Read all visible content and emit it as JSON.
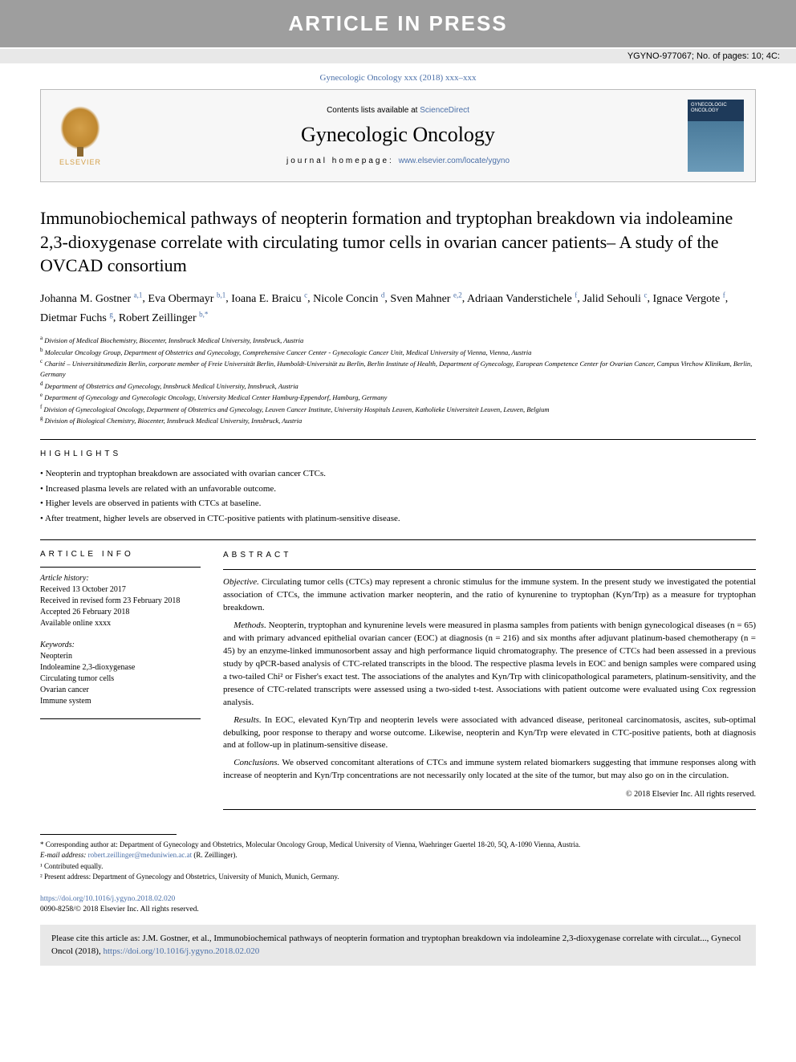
{
  "banner": "ARTICLE IN PRESS",
  "header_ref": "YGYNO-977067; No. of pages: 10; 4C:",
  "citation_line": "Gynecologic Oncology xxx (2018) xxx–xxx",
  "masthead": {
    "elsevier": "ELSEVIER",
    "contents_prefix": "Contents lists available at ",
    "contents_link": "ScienceDirect",
    "journal": "Gynecologic Oncology",
    "homepage_label": "journal homepage: ",
    "homepage_url": "www.elsevier.com/locate/ygyno",
    "cover_text": "GYNECOLOGIC ONCOLOGY"
  },
  "title": "Immunobiochemical pathways of neopterin formation and tryptophan breakdown via indoleamine 2,3-dioxygenase correlate with circulating tumor cells in ovarian cancer patients– A study of the OVCAD consortium",
  "authors": [
    {
      "name": "Johanna M. Gostner",
      "sup": "a,1"
    },
    {
      "name": "Eva Obermayr",
      "sup": "b,1"
    },
    {
      "name": "Ioana E. Braicu",
      "sup": "c"
    },
    {
      "name": "Nicole Concin",
      "sup": "d"
    },
    {
      "name": "Sven Mahner",
      "sup": "e,2"
    },
    {
      "name": "Adriaan Vanderstichele",
      "sup": "f"
    },
    {
      "name": "Jalid Sehouli",
      "sup": "c"
    },
    {
      "name": "Ignace Vergote",
      "sup": "f"
    },
    {
      "name": "Dietmar Fuchs",
      "sup": "g"
    },
    {
      "name": "Robert Zeillinger",
      "sup": "b,*"
    }
  ],
  "affiliations": [
    {
      "key": "a",
      "text": "Division of Medical Biochemistry, Biocenter, Innsbruck Medical University, Innsbruck, Austria"
    },
    {
      "key": "b",
      "text": "Molecular Oncology Group, Department of Obstetrics and Gynecology, Comprehensive Cancer Center - Gynecologic Cancer Unit, Medical University of Vienna, Vienna, Austria"
    },
    {
      "key": "c",
      "text": "Charité – Universitätsmedizin Berlin, corporate member of Freie Universität Berlin, Humboldt-Universität zu Berlin, Berlin Institute of Health, Department of Gynecology, European Competence Center for Ovarian Cancer, Campus Virchow Klinikum, Berlin, Germany"
    },
    {
      "key": "d",
      "text": "Department of Obstetrics and Gynecology, Innsbruck Medical University, Innsbruck, Austria"
    },
    {
      "key": "e",
      "text": "Department of Gynecology and Gynecologic Oncology, University Medical Center Hamburg-Eppendorf, Hamburg, Germany"
    },
    {
      "key": "f",
      "text": "Division of Gynecological Oncology, Department of Obstetrics and Gynecology, Leuven Cancer Institute, University Hospitals Leuven, Katholieke Universiteit Leuven, Leuven, Belgium"
    },
    {
      "key": "g",
      "text": "Division of Biological Chemistry, Biocenter, Innsbruck Medical University, Innsbruck, Austria"
    }
  ],
  "highlights_label": "HIGHLIGHTS",
  "highlights": [
    "Neopterin and tryptophan breakdown are associated with ovarian cancer CTCs.",
    "Increased plasma levels are related with an unfavorable outcome.",
    "Higher levels are observed in patients with CTCs at baseline.",
    "After treatment, higher levels are observed in CTC-positive patients with platinum-sensitive disease."
  ],
  "article_info_label": "ARTICLE INFO",
  "abstract_label": "ABSTRACT",
  "history_label": "Article history:",
  "history": [
    "Received 13 October 2017",
    "Received in revised form 23 February 2018",
    "Accepted 26 February 2018",
    "Available online xxxx"
  ],
  "keywords_label": "Keywords:",
  "keywords": [
    "Neopterin",
    "Indoleamine 2,3-dioxygenase",
    "Circulating tumor cells",
    "Ovarian cancer",
    "Immune system"
  ],
  "abstract": {
    "objective_label": "Objective.",
    "objective": "Circulating tumor cells (CTCs) may represent a chronic stimulus for the immune system. In the present study we investigated the potential association of CTCs, the immune activation marker neopterin, and the ratio of kynurenine to tryptophan (Kyn/Trp) as a measure for tryptophan breakdown.",
    "methods_label": "Methods.",
    "methods": "Neopterin, tryptophan and kynurenine levels were measured in plasma samples from patients with benign gynecological diseases (n = 65) and with primary advanced epithelial ovarian cancer (EOC) at diagnosis (n = 216) and six months after adjuvant platinum-based chemotherapy (n = 45) by an enzyme-linked immunosorbent assay and high performance liquid chromatography. The presence of CTCs had been assessed in a previous study by qPCR-based analysis of CTC-related transcripts in the blood. The respective plasma levels in EOC and benign samples were compared using a two-tailed Chi² or Fisher's exact test. The associations of the analytes and Kyn/Trp with clinicopathological parameters, platinum-sensitivity, and the presence of CTC-related transcripts were assessed using a two-sided t-test. Associations with patient outcome were evaluated using Cox regression analysis.",
    "results_label": "Results.",
    "results": "In EOC, elevated Kyn/Trp and neopterin levels were associated with advanced disease, peritoneal carcinomatosis, ascites, sub-optimal debulking, poor response to therapy and worse outcome. Likewise, neopterin and Kyn/Trp were elevated in CTC-positive patients, both at diagnosis and at follow-up in platinum-sensitive disease.",
    "conclusions_label": "Conclusions.",
    "conclusions": "We observed concomitant alterations of CTCs and immune system related biomarkers suggesting that immune responses along with increase of neopterin and Kyn/Trp concentrations are not necessarily only located at the site of the tumor, but may also go on in the circulation."
  },
  "copyright": "© 2018 Elsevier Inc. All rights reserved.",
  "footnotes": {
    "corresponding": "* Corresponding author at: Department of Gynecology and Obstetrics, Molecular Oncology Group, Medical University of Vienna, Waehringer Guertel 18-20, 5Q, A-1090 Vienna, Austria.",
    "email_label": "E-mail address: ",
    "email": "robert.zeillinger@meduniwien.ac.at",
    "email_suffix": " (R. Zeillinger).",
    "note1": "¹ Contributed equally.",
    "note2": "² Present address: Department of Gynecology and Obstetrics, University of Munich, Munich, Germany."
  },
  "doi": {
    "url": "https://doi.org/10.1016/j.ygyno.2018.02.020",
    "line2": "0090-8258/© 2018 Elsevier Inc. All rights reserved."
  },
  "citebox": {
    "prefix": "Please cite this article as: J.M. Gostner, et al., Immunobiochemical pathways of neopterin formation and tryptophan breakdown via indoleamine 2,3-dioxygenase correlate with circulat..., Gynecol Oncol (2018), ",
    "url": "https://doi.org/10.1016/j.ygyno.2018.02.020"
  },
  "colors": {
    "link": "#4a6fa8",
    "banner_bg": "#9e9e9e",
    "gray_bg": "#e8e8e8"
  }
}
